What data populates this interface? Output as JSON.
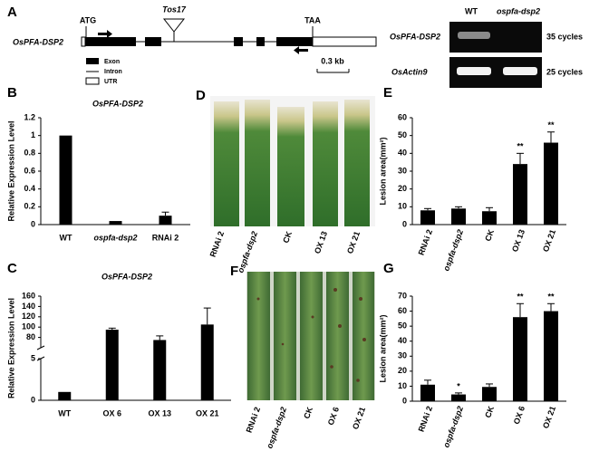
{
  "chart_data": [
    {
      "type": "bar",
      "panel": "B",
      "title": "OsPFA-DSP2",
      "ylabel": "Relative Expression Level",
      "categories": [
        "WT",
        "ospfa-dsp2",
        "RNAi 2"
      ],
      "values": [
        1,
        0.04,
        0.1
      ],
      "errors": [
        0,
        0,
        0.04
      ],
      "color": "#000000",
      "ylim": [
        0,
        1.2
      ],
      "yticks": [
        0,
        0.2,
        0.4,
        0.6,
        0.8,
        1,
        1.2
      ]
    },
    {
      "type": "bar",
      "panel": "C",
      "title": "OsPFA-DSP2",
      "ylabel": "Relative Expression Level",
      "categories": [
        "WT",
        "OX 6",
        "OX 13",
        "OX 21"
      ],
      "values": [
        1,
        95,
        75,
        105
      ],
      "errors": [
        0,
        3,
        8,
        32
      ],
      "color": "#000000",
      "ylim": [
        0,
        160
      ],
      "axis_break": [
        5,
        60
      ],
      "yticks": [
        0,
        5,
        80,
        100,
        120,
        140,
        160
      ]
    },
    {
      "type": "bar",
      "panel": "E",
      "ylabel": "Lesion area(mm²)",
      "categories": [
        "RNAi 2",
        "ospfa-dsp2",
        "CK",
        "OX 13",
        "OX 21"
      ],
      "values": [
        8,
        9,
        7.5,
        34,
        46
      ],
      "errors": [
        1,
        1,
        2,
        6,
        6
      ],
      "significance": [
        null,
        null,
        null,
        "**",
        "**"
      ],
      "color": "#000000",
      "ylim": [
        0,
        60
      ],
      "yticks": [
        0,
        10,
        20,
        30,
        40,
        50,
        60
      ]
    },
    {
      "type": "bar",
      "panel": "G",
      "ylabel": "Lesion area(mm²)",
      "categories": [
        "RNAi 2",
        "ospfa-dsp2",
        "CK",
        "OX 6",
        "OX 21"
      ],
      "values": [
        11,
        4.5,
        9.5,
        56,
        60
      ],
      "errors": [
        3,
        1,
        2,
        9,
        5
      ],
      "significance": [
        null,
        "*",
        null,
        "**",
        "**"
      ],
      "color": "#000000",
      "ylim": [
        0,
        70
      ],
      "yticks": [
        0,
        10,
        20,
        30,
        40,
        50,
        60,
        70
      ]
    }
  ],
  "gene_diagram": {
    "panel": "A",
    "gene": "OsPFA-DSP2",
    "start_codon": "ATG",
    "stop_codon": "TAA",
    "insertion": "Tos17",
    "legend": [
      "Exon",
      "Intron",
      "UTR"
    ],
    "scale": "0.3 kb"
  },
  "gel": {
    "lanes": [
      "WT",
      "ospfa-dsp2"
    ],
    "rows": [
      {
        "gene": "OsPFA-DSP2",
        "cycles": "35 cycles"
      },
      {
        "gene": "OsActin9",
        "cycles": "25 cycles"
      }
    ]
  },
  "photo_d": {
    "panel": "D",
    "samples": [
      "RNAi 2",
      "ospfa-dsp2",
      "CK",
      "OX 13",
      "OX 21"
    ]
  },
  "photo_f": {
    "panel": "F",
    "samples": [
      "RNAi 2",
      "ospfa-dsp2",
      "CK",
      "OX 6",
      "OX 21"
    ]
  }
}
